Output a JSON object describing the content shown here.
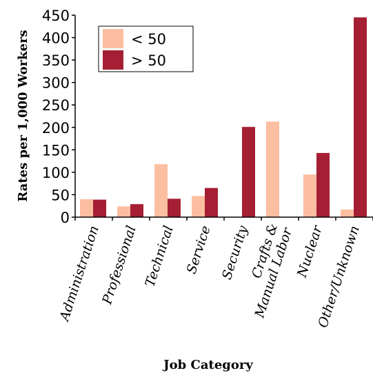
{
  "chart_data": {
    "type": "bar",
    "title": "",
    "xlabel": "Job Category",
    "ylabel": "Rates per 1,000 Workers",
    "ylim": [
      0,
      450
    ],
    "yticks": [
      0,
      50,
      100,
      150,
      200,
      250,
      300,
      350,
      400,
      450
    ],
    "grid": false,
    "legend_position": "top-left",
    "categories": [
      [
        "Administration"
      ],
      [
        "Professional"
      ],
      [
        "Technical"
      ],
      [
        "Service"
      ],
      [
        "Security"
      ],
      [
        "Crafts &",
        "Manual Labor"
      ],
      [
        "Nuclear"
      ],
      [
        "Other/Unknown"
      ]
    ],
    "series": [
      {
        "name": "< 50",
        "color": "#fcbea0",
        "values": [
          40,
          24,
          118,
          47,
          0,
          213,
          95,
          17
        ]
      },
      {
        "name": "> 50",
        "color": "#a51f34",
        "values": [
          39,
          29,
          41,
          65,
          201,
          0,
          143,
          445
        ]
      }
    ]
  }
}
